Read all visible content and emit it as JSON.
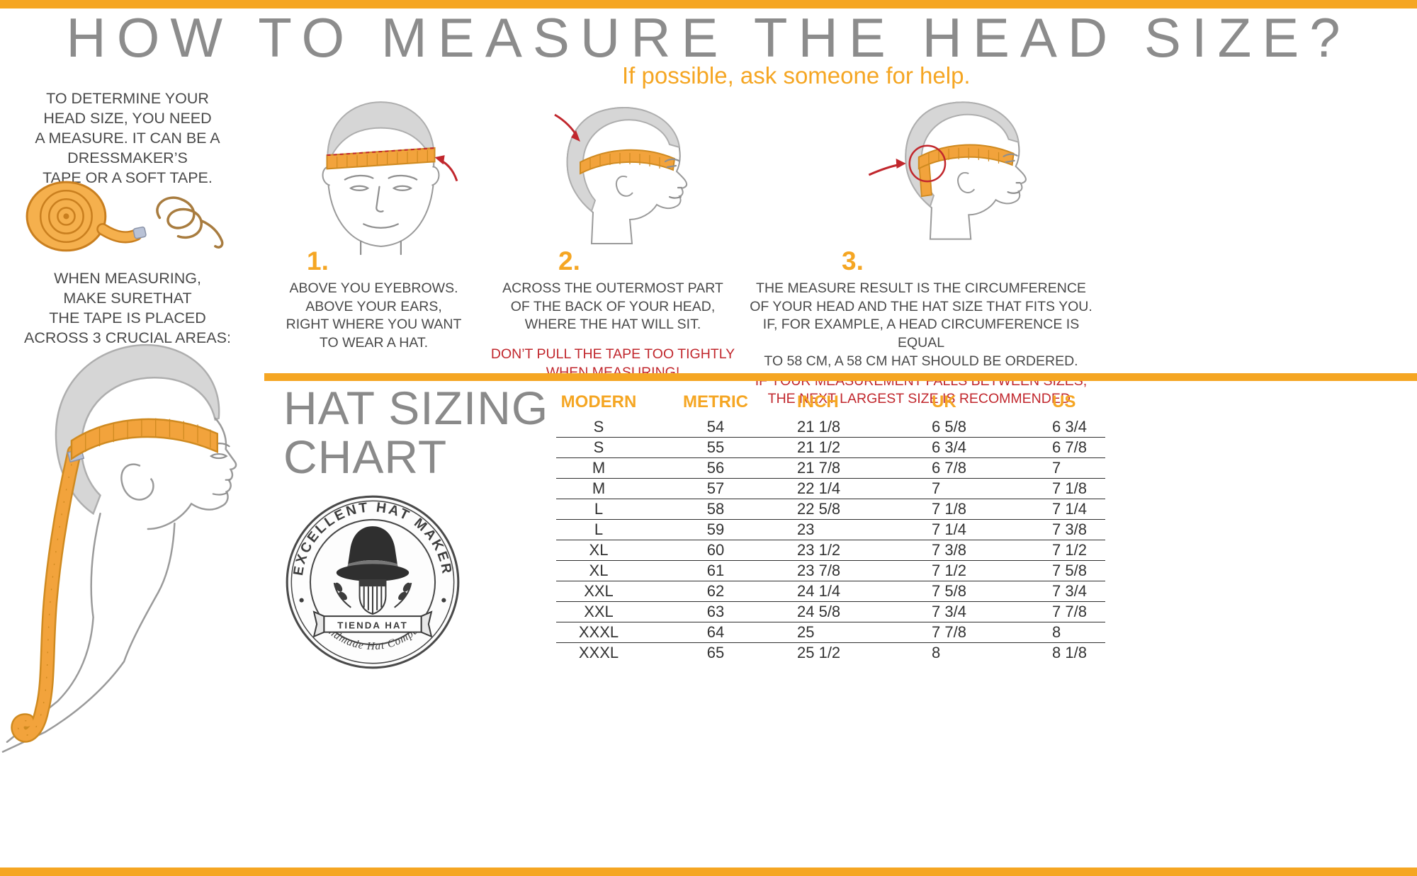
{
  "colors": {
    "accent_orange": "#F5A623",
    "title_gray": "#8C8C8C",
    "body_gray": "#4A4A4A",
    "warning_red": "#C1272D",
    "table_text": "#333333",
    "tape_orange": "#F2A33C"
  },
  "header": {
    "title": "HOW TO MEASURE THE HEAD SIZE?",
    "subtitle": "If possible, ask someone for help."
  },
  "intro": {
    "paragraph1": "TO DETERMINE YOUR\nHEAD SIZE, YOU NEED\nA MEASURE. IT CAN BE A\nDRESSMAKER’S\nTAPE OR A SOFT TAPE.",
    "paragraph2": "WHEN MEASURING,\nMAKE SURETHAT\nTHE TAPE IS PLACED\nACROSS 3 CRUCIAL AREAS:"
  },
  "steps": [
    {
      "number": "1.",
      "caption": "ABOVE YOU EYEBROWS.\nABOVE YOUR EARS,\nRIGHT WHERE YOU WANT\nTO WEAR A HAT."
    },
    {
      "number": "2.",
      "caption": "ACROSS THE OUTERMOST PART\nOF THE BACK OF YOUR HEAD,\nWHERE THE HAT WILL SIT.",
      "warning": "DON’T PULL THE TAPE TOO TIGHTLY\nWHEN MEASURING!"
    },
    {
      "number": "3.",
      "caption": "THE MEASURE RESULT IS THE CIRCUMFERENCE\nOF YOUR HEAD AND THE  HAT SIZE THAT FITS YOU.\nIF, FOR EXAMPLE, A HEAD CIRCUMFERENCE IS EQUAL\nTO 58 CM, A 58 CM HAT SHOULD BE ORDERED.",
      "warning": "IF YOUR MEASUREMENT FALLS BETWEEN SIZES,\nTHE NEXT LARGEST SIZE IS RECOMMENDED."
    }
  ],
  "sizing_chart": {
    "title": "HAT SIZING\nCHART",
    "columns": [
      "MODERN",
      "METRIC",
      "INCH",
      "UK",
      "US"
    ],
    "rows": [
      [
        "S",
        "54",
        "21 1/8",
        "6 5/8",
        "6 3/4"
      ],
      [
        "S",
        "55",
        "21 1/2",
        "6 3/4",
        "6 7/8"
      ],
      [
        "M",
        "56",
        "21 7/8",
        "6 7/8",
        "7"
      ],
      [
        "M",
        "57",
        "22 1/4",
        "7",
        "7 1/8"
      ],
      [
        "L",
        "58",
        "22 5/8",
        "7 1/8",
        "7 1/4"
      ],
      [
        "L",
        "59",
        "23",
        "7 1/4",
        "7 3/8"
      ],
      [
        "XL",
        "60",
        "23 1/2",
        "7 3/8",
        "7 1/2"
      ],
      [
        "XL",
        "61",
        "23 7/8",
        "7 1/2",
        "7 5/8"
      ],
      [
        "XXL",
        "62",
        "24 1/4",
        "7 5/8",
        "7 3/4"
      ],
      [
        "XXL",
        "63",
        "24 5/8",
        "7 3/4",
        "7 7/8"
      ],
      [
        "XXXL",
        "64",
        "25",
        "7 7/8",
        "8"
      ],
      [
        "XXXL",
        "65",
        "25 1/2",
        "8",
        "8 1/8"
      ]
    ]
  },
  "logo": {
    "arc_top": "EXCELLENT HAT MAKER",
    "banner": "TIENDA HAT",
    "arc_bottom": "Handmade Hat Company"
  }
}
